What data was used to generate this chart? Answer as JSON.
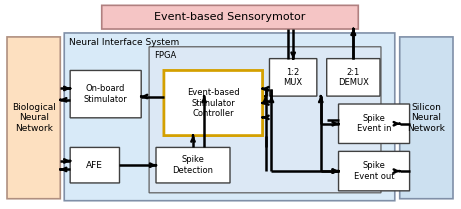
{
  "title": "Event-based Sensorymotor",
  "neural_label": "Neural Interface System",
  "fpga_label": "FPGA",
  "bio_label": "Biological\nNeural\nNetwork",
  "silicon_label": "Silicon\nNeural\nNetwork",
  "colors": {
    "sensory_fill": "#f5c5c5",
    "sensory_edge": "#b08080",
    "neural_fill": "#d8eaf8",
    "neural_edge": "#8090a8",
    "fpga_fill": "#dce8f5",
    "fpga_edge": "#606060",
    "bio_fill": "#fde0c0",
    "bio_edge": "#b09080",
    "silicon_fill": "#cce0f0",
    "silicon_edge": "#8090a8",
    "white_fill": "#ffffff",
    "white_edge": "#404040",
    "gold_edge": "#d4a000",
    "arrow": "#000000"
  },
  "lw": {
    "outer": 1.2,
    "inner": 1.0,
    "arrow": 1.8,
    "gold": 2.0
  }
}
